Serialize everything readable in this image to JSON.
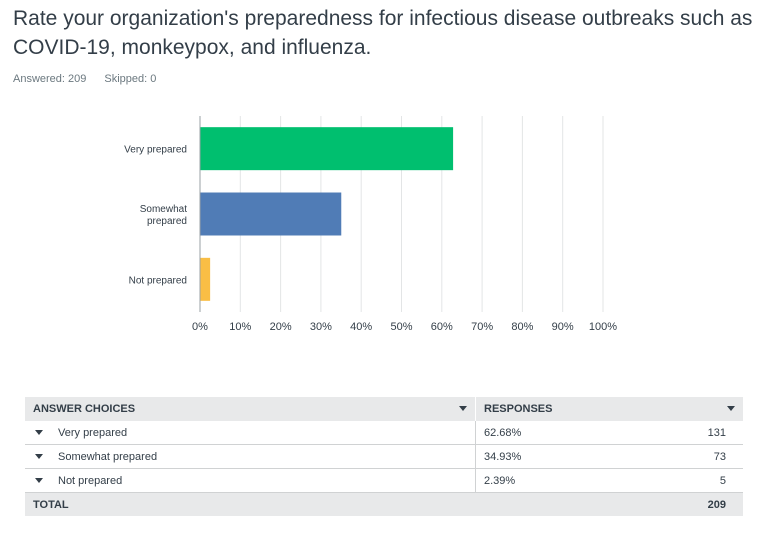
{
  "question": {
    "title": "Rate your organization's preparedness for infectious disease outbreaks such as COVID-19, monkeypox, and influenza.",
    "answered_label": "Answered: 209",
    "skipped_label": "Skipped: 0"
  },
  "chart_data": {
    "type": "bar",
    "orientation": "horizontal",
    "categories": [
      "Very prepared",
      "Somewhat prepared",
      "Not prepared"
    ],
    "category_lines": [
      [
        "Very prepared"
      ],
      [
        "Somewhat",
        "prepared"
      ],
      [
        "Not prepared"
      ]
    ],
    "values": [
      62.68,
      34.93,
      2.39
    ],
    "colors": [
      "#00bf6f",
      "#507cb6",
      "#f9be45"
    ],
    "xlim": [
      0,
      100
    ],
    "xticks": [
      "0%",
      "10%",
      "20%",
      "30%",
      "40%",
      "50%",
      "60%",
      "70%",
      "80%",
      "90%",
      "100%"
    ],
    "grid": true
  },
  "table": {
    "headers": {
      "choices": "ANSWER CHOICES",
      "responses": "RESPONSES"
    },
    "rows": [
      {
        "choice": "Very prepared",
        "percent": "62.68%",
        "count": "131"
      },
      {
        "choice": "Somewhat prepared",
        "percent": "34.93%",
        "count": "73"
      },
      {
        "choice": "Not prepared",
        "percent": "2.39%",
        "count": "5"
      }
    ],
    "total": {
      "label": "TOTAL",
      "count": "209"
    }
  }
}
